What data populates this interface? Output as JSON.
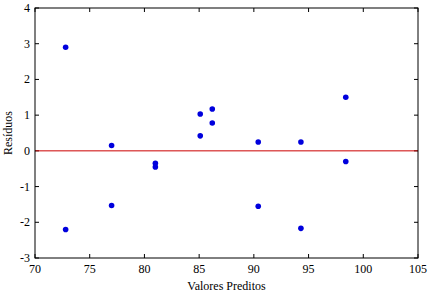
{
  "chart_data": {
    "type": "scatter",
    "x_label": "Valores Preditos",
    "y_label": "Resíduos",
    "x": [
      72.8,
      72.8,
      77.0,
      77.0,
      81.0,
      81.0,
      85.1,
      85.1,
      86.2,
      86.2,
      90.4,
      90.4,
      94.3,
      94.3,
      98.4,
      98.4
    ],
    "values": [
      2.9,
      -2.2,
      0.15,
      -1.53,
      -0.35,
      -0.45,
      1.03,
      0.42,
      1.17,
      0.78,
      0.25,
      -1.55,
      0.25,
      -2.17,
      1.5,
      -0.3
    ],
    "color": "#0000dd",
    "marker": "circle",
    "reference_line": {
      "value": 0,
      "color": "#cc0000"
    },
    "xlim": [
      70,
      105
    ],
    "xticks": [
      70,
      75,
      80,
      85,
      90,
      95,
      100,
      105
    ],
    "ylim": [
      -3,
      4
    ],
    "yticks": [
      -3,
      -2,
      -1,
      0,
      1,
      2,
      3,
      4
    ],
    "grid": false
  }
}
